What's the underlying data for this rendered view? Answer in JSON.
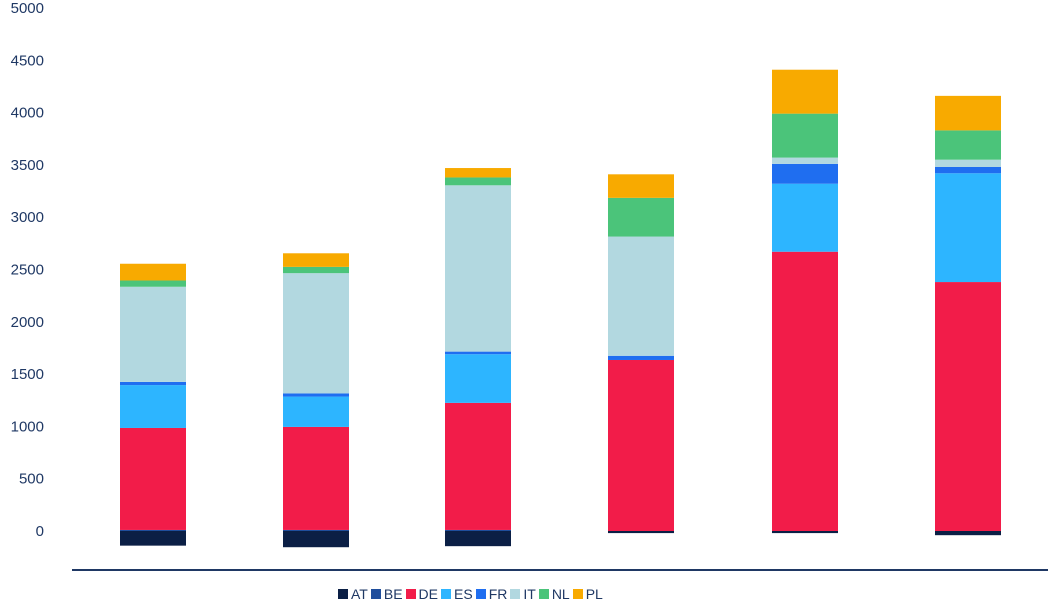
{
  "chart_data": {
    "type": "bar",
    "stacked": true,
    "categories": [
      "",
      "",
      "",
      "",
      "",
      ""
    ],
    "ylim": [
      -375,
      5000
    ],
    "yticks": [
      0,
      500,
      1000,
      1500,
      2000,
      2500,
      3000,
      3500,
      4000,
      4500,
      5000
    ],
    "grid": false,
    "legend_position": "bottom",
    "series": [
      {
        "name": "AT",
        "color": "#0b1f45",
        "values": [
          -140,
          -155,
          -145,
          -20,
          -20,
          -40
        ]
      },
      {
        "name": "BE",
        "color": "#1f4e9c",
        "values": [
          10,
          10,
          10,
          0,
          0,
          0
        ]
      },
      {
        "name": "DE",
        "color": "#f21c49",
        "values": [
          975,
          985,
          1215,
          1635,
          2670,
          2380
        ]
      },
      {
        "name": "ES",
        "color": "#2db5ff",
        "values": [
          410,
          290,
          465,
          0,
          650,
          1040
        ]
      },
      {
        "name": "FR",
        "color": "#1f6ef0",
        "values": [
          30,
          30,
          25,
          40,
          190,
          60
        ]
      },
      {
        "name": "IT",
        "color": "#b2d8e0",
        "values": [
          910,
          1150,
          1590,
          1140,
          60,
          70
        ]
      },
      {
        "name": "NL",
        "color": "#4bc47a",
        "values": [
          60,
          60,
          75,
          370,
          420,
          280
        ]
      },
      {
        "name": "PL",
        "color": "#f8aa00",
        "values": [
          160,
          130,
          90,
          225,
          420,
          330
        ]
      }
    ]
  }
}
